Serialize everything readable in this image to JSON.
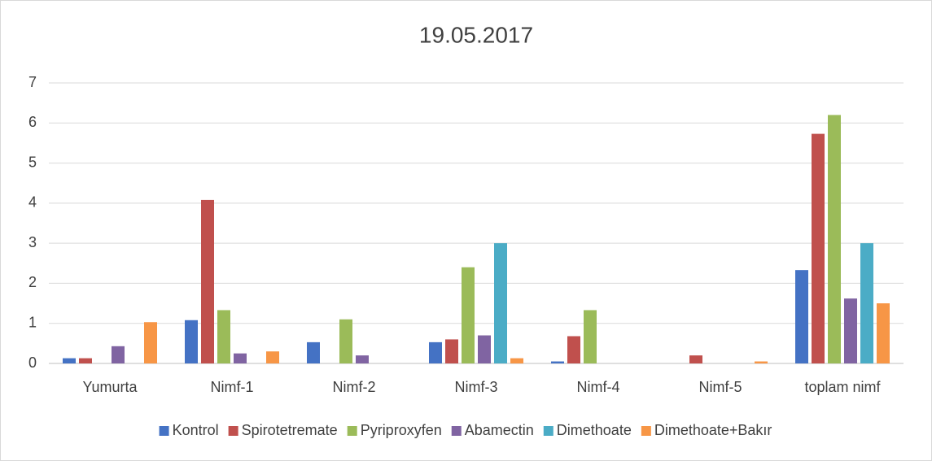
{
  "chart_data": {
    "type": "bar",
    "title": "19.05.2017",
    "categories": [
      "Yumurta",
      "Nimf-1",
      "Nimf-2",
      "Nimf-3",
      "Nimf-4",
      "Nimf-5",
      "toplam nimf"
    ],
    "series": [
      {
        "name": "Kontrol",
        "color": "#4472c4",
        "values": [
          0.13,
          1.08,
          0.53,
          0.53,
          0.05,
          0,
          2.33
        ]
      },
      {
        "name": "Spirotetremate",
        "color": "#c0504d",
        "values": [
          0.13,
          4.08,
          0,
          0.6,
          0.68,
          0.2,
          5.73
        ]
      },
      {
        "name": "Pyriproxyfen",
        "color": "#9bbb59",
        "values": [
          0,
          1.33,
          1.1,
          2.4,
          1.33,
          0,
          6.2
        ]
      },
      {
        "name": "Abamectin",
        "color": "#8064a2",
        "values": [
          0.43,
          0.25,
          0.2,
          0.7,
          0,
          0,
          1.62
        ]
      },
      {
        "name": "Dimethoate",
        "color": "#4bacc6",
        "values": [
          0,
          0,
          0,
          3,
          0,
          0,
          3
        ]
      },
      {
        "name": "Dimethoate+Bakır",
        "color": "#f79646",
        "values": [
          1.03,
          0.3,
          0,
          0.13,
          0,
          0.05,
          1.5
        ]
      }
    ],
    "ylim": [
      0,
      7
    ],
    "yticks": [
      0,
      1,
      2,
      3,
      4,
      5,
      6,
      7
    ],
    "grid": true,
    "legend": "bottom"
  }
}
